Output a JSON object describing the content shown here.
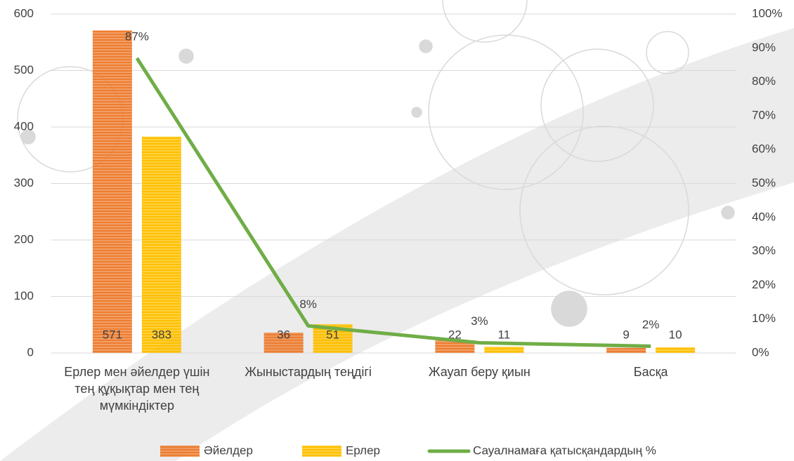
{
  "chart_data": {
    "type": "bar",
    "categories": [
      "Ерлер мен әйелдер үшін тең құқықтар мен тең мүмкіндіктер",
      "Жыныстардың теңдігі",
      "Жауап беру қиын",
      "Басқа"
    ],
    "series": [
      {
        "name": "Әйелдер",
        "color": "#ed7d31",
        "values": [
          571,
          36,
          22,
          9
        ]
      },
      {
        "name": "Ерлер",
        "color": "#ffc000",
        "values": [
          383,
          51,
          11,
          10
        ]
      },
      {
        "name": "Сауалнамаға қатысқандардың %",
        "color": "#70ad47",
        "type": "line",
        "axis": "y2",
        "values": [
          87,
          8,
          3,
          2
        ],
        "value_labels": [
          "87%",
          "8%",
          "3%",
          "2%"
        ]
      }
    ],
    "ylim": [
      0,
      600
    ],
    "yticks": [
      0,
      100,
      200,
      300,
      400,
      500,
      600
    ],
    "y2lim": [
      0,
      100
    ],
    "y2ticks": [
      {
        "value": 0,
        "label": "0%"
      },
      {
        "value": 10,
        "label": "10%"
      },
      {
        "value": 20,
        "label": "20%"
      },
      {
        "value": 30,
        "label": "30%"
      },
      {
        "value": 40,
        "label": "40%"
      },
      {
        "value": 50,
        "label": "50%"
      },
      {
        "value": 60,
        "label": "60%"
      },
      {
        "value": 70,
        "label": "70%"
      },
      {
        "value": 80,
        "label": "80%"
      },
      {
        "value": 90,
        "label": "90%"
      },
      {
        "value": 100,
        "label": "100%"
      }
    ],
    "grid": true,
    "legend": "bottom"
  }
}
